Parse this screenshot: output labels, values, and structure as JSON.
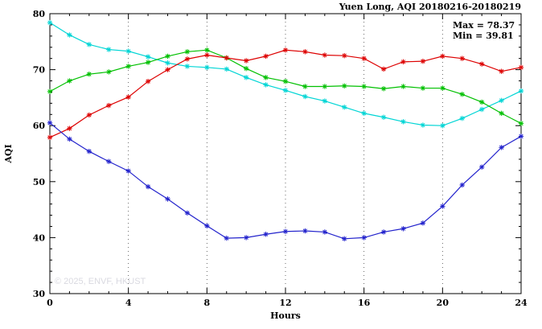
{
  "header": {
    "title": "Yuen Long, AQI 20180216-20180219"
  },
  "annotations": {
    "max_label": "Max = 78.37",
    "min_label": "Min = 39.81"
  },
  "watermark": "© 2025, ENVF, HKUST",
  "axes": {
    "xlabel": "Hours",
    "ylabel": "AQI"
  },
  "chart_data": {
    "type": "line",
    "title": "Yuen Long, AQI 20180216-20180219",
    "xlabel": "Hours",
    "ylabel": "AQI",
    "xlim": [
      0,
      24
    ],
    "ylim": [
      30,
      80
    ],
    "xticks": [
      0,
      4,
      8,
      12,
      16,
      20,
      24
    ],
    "yticks": [
      30,
      40,
      50,
      60,
      70,
      80
    ],
    "x_minor_step": 1,
    "y_minor_step": 2,
    "grid": "vertical-dotted",
    "legend": "none",
    "marker": "asterisk",
    "max_value": 78.37,
    "min_value": 39.81,
    "x": [
      0,
      1,
      2,
      3,
      4,
      5,
      6,
      7,
      8,
      9,
      10,
      11,
      12,
      13,
      14,
      15,
      16,
      17,
      18,
      19,
      20,
      21,
      22,
      23,
      24
    ],
    "series": [
      {
        "name": "cyan",
        "color": "#00d5d5",
        "values": [
          78.4,
          76.2,
          74.5,
          73.6,
          73.3,
          72.3,
          71.2,
          70.6,
          70.4,
          70.1,
          68.6,
          67.3,
          66.3,
          65.2,
          64.4,
          63.3,
          62.2,
          61.5,
          60.7,
          60.1,
          60.0,
          61.3,
          62.9,
          64.5,
          66.2
        ]
      },
      {
        "name": "green",
        "color": "#00c000",
        "values": [
          66.1,
          68.0,
          69.2,
          69.6,
          70.6,
          71.3,
          72.4,
          73.2,
          73.5,
          72.1,
          70.2,
          68.6,
          67.9,
          67.0,
          67.0,
          67.1,
          67.0,
          66.6,
          67.0,
          66.7,
          66.7,
          65.6,
          64.2,
          62.2,
          60.4
        ]
      },
      {
        "name": "red",
        "color": "#dd0000",
        "values": [
          57.9,
          59.5,
          61.9,
          63.6,
          65.1,
          67.9,
          70.0,
          71.9,
          72.6,
          72.1,
          71.6,
          72.4,
          73.5,
          73.2,
          72.6,
          72.5,
          72.0,
          70.1,
          71.4,
          71.5,
          72.4,
          72.0,
          71.0,
          69.7,
          70.4
        ]
      },
      {
        "name": "blue",
        "color": "#2222cc",
        "values": [
          60.5,
          57.6,
          55.4,
          53.6,
          51.9,
          49.1,
          46.9,
          44.4,
          42.1,
          39.9,
          40.0,
          40.6,
          41.1,
          41.2,
          41.0,
          39.8,
          40.0,
          41.0,
          41.6,
          42.6,
          45.6,
          49.4,
          52.6,
          56.1,
          58.1
        ]
      }
    ]
  }
}
